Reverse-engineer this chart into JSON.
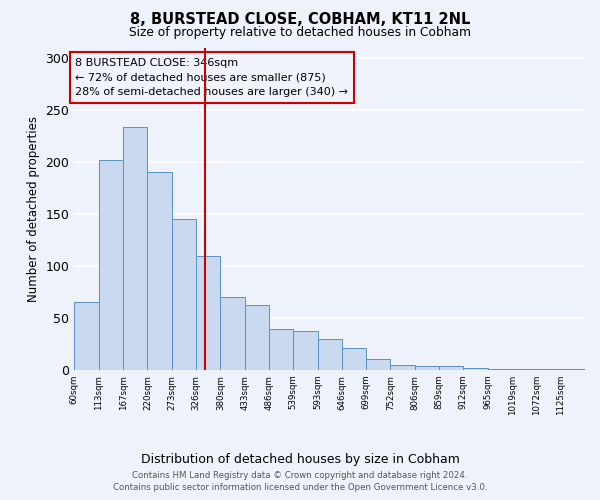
{
  "title": "8, BURSTEAD CLOSE, COBHAM, KT11 2NL",
  "subtitle": "Size of property relative to detached houses in Cobham",
  "xlabel": "Distribution of detached houses by size in Cobham",
  "ylabel": "Number of detached properties",
  "bin_labels": [
    "60sqm",
    "113sqm",
    "167sqm",
    "220sqm",
    "273sqm",
    "326sqm",
    "380sqm",
    "433sqm",
    "486sqm",
    "539sqm",
    "593sqm",
    "646sqm",
    "699sqm",
    "752sqm",
    "806sqm",
    "859sqm",
    "912sqm",
    "965sqm",
    "1019sqm",
    "1072sqm",
    "1125sqm"
  ],
  "bin_edges": [
    60,
    113,
    167,
    220,
    273,
    326,
    380,
    433,
    486,
    539,
    593,
    646,
    699,
    752,
    806,
    859,
    912,
    965,
    1019,
    1072,
    1125,
    1178
  ],
  "counts": [
    65,
    202,
    234,
    190,
    145,
    109,
    70,
    62,
    39,
    37,
    30,
    21,
    10,
    5,
    4,
    4,
    2,
    1,
    1,
    1,
    1
  ],
  "bar_facecolor": "#c9d9f0",
  "bar_edgecolor": "#5b8fc4",
  "vline_x": 346,
  "vline_color": "#cc0000",
  "annotation_text": "8 BURSTEAD CLOSE: 346sqm\n← 72% of detached houses are smaller (875)\n28% of semi-detached houses are larger (340) →",
  "annotation_box_edgecolor": "#cc0000",
  "annotation_box_facecolor": "#f0f4fa",
  "footer_line1": "Contains HM Land Registry data © Crown copyright and database right 2024.",
  "footer_line2": "Contains public sector information licensed under the Open Government Licence v3.0.",
  "ylim": [
    0,
    310
  ],
  "yticks": [
    0,
    50,
    100,
    150,
    200,
    250,
    300
  ],
  "background_color": "#eef2fa",
  "grid_color": "#ffffff"
}
